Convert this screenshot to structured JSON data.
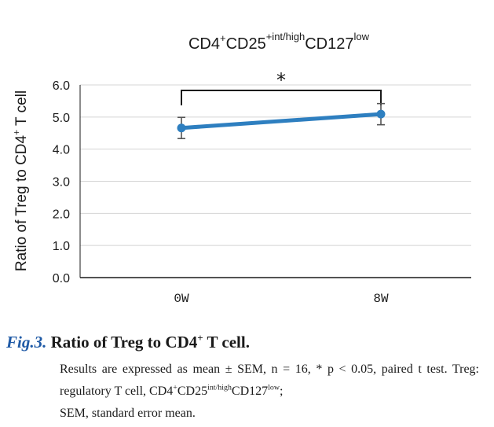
{
  "chart_data": {
    "type": "line",
    "title": {
      "base": "CD4",
      "sup1": "+",
      "mid": "CD25",
      "sup2": "+int/high",
      "mid2": "CD127",
      "sup3": "low"
    },
    "ylabel": {
      "main": "Ratio of Treg to CD4",
      "sup": "+",
      "tail": " T cell"
    },
    "xlabel": "",
    "categories": [
      "0W",
      "8W"
    ],
    "series": [
      {
        "name": "Treg ratio",
        "values": [
          4.66,
          5.09
        ],
        "error": [
          0.33,
          0.33
        ],
        "color": "#2e7fc0"
      }
    ],
    "ylim": [
      0,
      6
    ],
    "yticks": [
      "0.0",
      "1.0",
      "2.0",
      "3.0",
      "4.0",
      "5.0",
      "6.0"
    ],
    "grid": true,
    "significance": {
      "label": "*",
      "from": "0W",
      "to": "8W"
    }
  },
  "caption": {
    "fig_label": "Fig.3.",
    "title_main": "Ratio of Treg to CD4",
    "title_sup": "+",
    "title_tail": " T cell.",
    "line1": "Results are expressed as mean ± SEM, n = 16, * p < 0.05, paired t test. Treg: regulatory T cell, CD4",
    "sup1": "+",
    "line2": "CD25",
    "sup2": "int/high",
    "line3": "CD127",
    "sup3": "low",
    "line4": ";",
    "line5": "SEM, standard error mean."
  }
}
